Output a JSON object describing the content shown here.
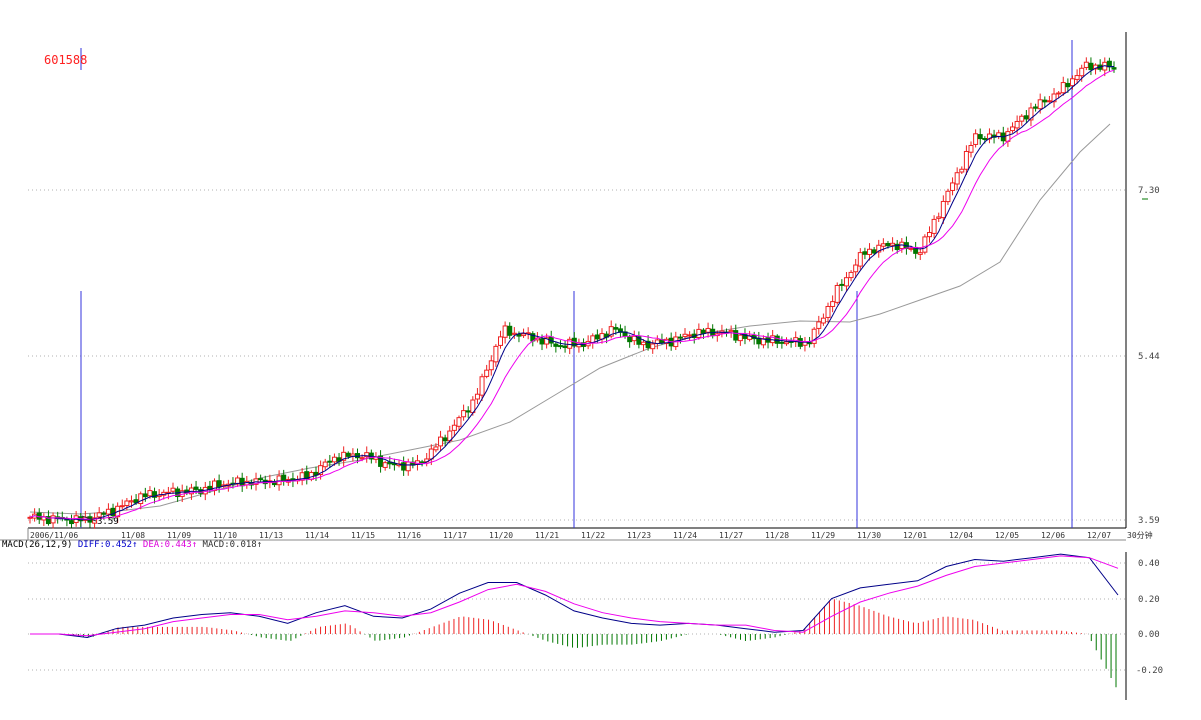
{
  "stock_code": "601588",
  "price_levels": [
    "7.30",
    "5.44",
    "3.59"
  ],
  "low_marker": "3.59",
  "date_labels": [
    "2006/11/06",
    "11/08",
    "11/09",
    "11/10",
    "11/13",
    "11/14",
    "11/15",
    "11/16",
    "11/17",
    "11/20",
    "11/21",
    "11/22",
    "11/23",
    "11/24",
    "11/27",
    "11/28",
    "11/29",
    "11/30",
    "12/01",
    "12/04",
    "12/05",
    "12/06",
    "12/07"
  ],
  "period_label": "30分钟",
  "macd": {
    "label": "MACD(26,12,9)",
    "diff_text": "DIFF:0.452",
    "dea_text": "DEA:0.443",
    "macd_text": "MACD:0.018",
    "levels": [
      "0.40",
      "0.20",
      "0.00",
      "-0.20"
    ]
  },
  "colors": {
    "up": "#ee2222",
    "down": "#007700",
    "diff": "#000088",
    "dea": "#ee00ee",
    "ma_long": "#999999",
    "vline": "#3333dd"
  },
  "chart_data": {
    "type": "candlestick",
    "symbol": "601588",
    "x": [
      "2006/11/06",
      "11/08",
      "11/09",
      "11/10",
      "11/13",
      "11/14",
      "11/15",
      "11/16",
      "11/17",
      "11/20",
      "11/21",
      "11/22",
      "11/23",
      "11/24",
      "11/27",
      "11/28",
      "11/29",
      "11/30",
      "12/01",
      "12/04",
      "12/05",
      "12/06",
      "12/07"
    ],
    "close_path": [
      3.62,
      3.6,
      3.59,
      3.7,
      3.86,
      3.9,
      3.92,
      4.0,
      4.02,
      4.03,
      4.08,
      4.3,
      4.32,
      4.2,
      4.22,
      4.55,
      4.95,
      5.72,
      5.65,
      5.55,
      5.58,
      5.74,
      5.56,
      5.6,
      5.7,
      5.7,
      5.62,
      5.6,
      5.58,
      6.15,
      6.6,
      6.7,
      6.6,
      7.25,
      7.9,
      7.9,
      8.2,
      8.4,
      8.7,
      8.68
    ],
    "ylim": [
      3.55,
      8.85
    ],
    "macd_ylim": [
      -0.33,
      0.52
    ],
    "diff_path": [
      0.0,
      0.0,
      -0.02,
      0.03,
      0.05,
      0.09,
      0.11,
      0.12,
      0.1,
      0.06,
      0.12,
      0.16,
      0.1,
      0.09,
      0.14,
      0.23,
      0.29,
      0.29,
      0.22,
      0.13,
      0.09,
      0.06,
      0.05,
      0.06,
      0.05,
      0.03,
      0.01,
      0.02,
      0.2,
      0.26,
      0.28,
      0.3,
      0.38,
      0.42,
      0.41,
      0.43,
      0.45,
      0.43,
      0.22
    ],
    "dea_path": [
      0.0,
      0.0,
      -0.01,
      0.01,
      0.03,
      0.07,
      0.09,
      0.11,
      0.11,
      0.08,
      0.1,
      0.13,
      0.12,
      0.1,
      0.12,
      0.18,
      0.25,
      0.28,
      0.24,
      0.17,
      0.12,
      0.09,
      0.07,
      0.06,
      0.05,
      0.05,
      0.02,
      0.01,
      0.1,
      0.18,
      0.23,
      0.27,
      0.33,
      0.38,
      0.4,
      0.42,
      0.44,
      0.43,
      0.37
    ],
    "diff": 0.452,
    "dea": 0.443,
    "macd_value": 0.018
  }
}
